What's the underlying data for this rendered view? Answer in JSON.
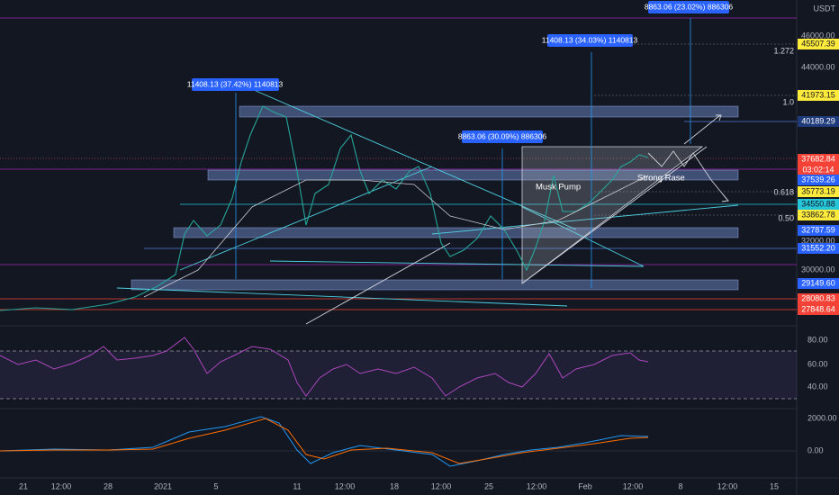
{
  "price_axis": {
    "currency": "USDT",
    "ticks": [
      "46000.00",
      "44000.00",
      "32000.00",
      "30000.00"
    ]
  },
  "price_labels": [
    "45507.39",
    "41973.15",
    "40189.29",
    "37682.84",
    "03:02:14",
    "37539.26",
    "35773.19",
    "34550.88",
    "33862.78",
    "32787.59",
    "31552.20",
    "29149.60",
    "28080.83",
    "27848.64"
  ],
  "fib_levels": [
    "1.272",
    "1.0",
    "0.618",
    "0.50"
  ],
  "annotations": [
    "8863.06 (23.02%) 886306",
    "11408.13 (34.03%) 1140813",
    "11408.13 (37.42%) 1140813",
    "8863.06 (30.09%) 886306"
  ],
  "labels": [
    "Musk Pump",
    "Strong Rase"
  ],
  "rsi_axis": [
    "80.00",
    "60.00",
    "40.00"
  ],
  "macd_axis": [
    "2000.00",
    "0.00"
  ],
  "time_axis": [
    "21",
    "12:00",
    "28",
    "2021",
    "5",
    "11",
    "12:00",
    "18",
    "12:00",
    "25",
    "12:00",
    "Feb",
    "12:00",
    "8",
    "12:00",
    "15"
  ]
}
